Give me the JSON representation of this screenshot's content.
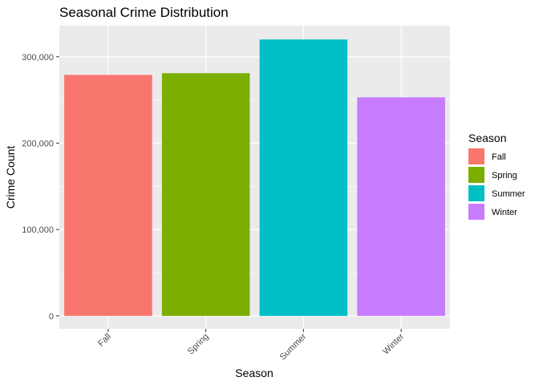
{
  "chart_data": {
    "type": "bar",
    "title": "Seasonal Crime Distribution",
    "xlabel": "Season",
    "ylabel": "Crime Count",
    "categories": [
      "Fall",
      "Spring",
      "Summer",
      "Winter"
    ],
    "values": [
      279000,
      281000,
      320000,
      253000
    ],
    "colors": [
      "#F8766D",
      "#7CAE00",
      "#00BFC4",
      "#C77CFF"
    ],
    "ylim": [
      -15000,
      336000
    ],
    "yticks": [
      0,
      100000,
      200000,
      300000
    ],
    "ytick_labels": [
      "0",
      "100,000",
      "200,000",
      "300,000"
    ],
    "grid": true,
    "panel_background": "#EBEBEB",
    "legend": {
      "title": "Season",
      "position": "right",
      "items": [
        "Fall",
        "Spring",
        "Summer",
        "Winter"
      ]
    }
  }
}
